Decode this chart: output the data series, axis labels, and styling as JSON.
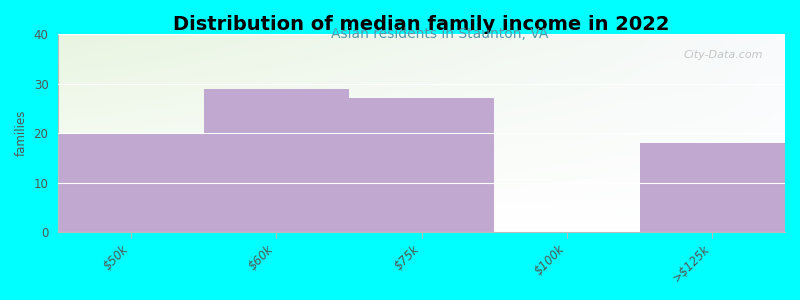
{
  "title": "Distribution of median family income in 2022",
  "subtitle": "Asian residents in Staunton, VA",
  "categories": [
    "$50k",
    "$60k",
    "$75k",
    "$100k",
    ">$125k"
  ],
  "values": [
    20,
    29,
    27,
    0,
    18
  ],
  "bar_color": "#c0a8d0",
  "zero_bar_color": "#e0f0cc",
  "background_color": "#00ffff",
  "plot_bg_top_left": "#e8f5e0",
  "plot_bg_top_right": "#f8fafc",
  "plot_bg_bottom": "#ffffff",
  "ylabel": "families",
  "ylim": [
    0,
    40
  ],
  "yticks": [
    0,
    10,
    20,
    30,
    40
  ],
  "title_fontsize": 14,
  "subtitle_fontsize": 10,
  "subtitle_color": "#5599aa",
  "watermark": "City-Data.com",
  "bar_width": 1.0
}
